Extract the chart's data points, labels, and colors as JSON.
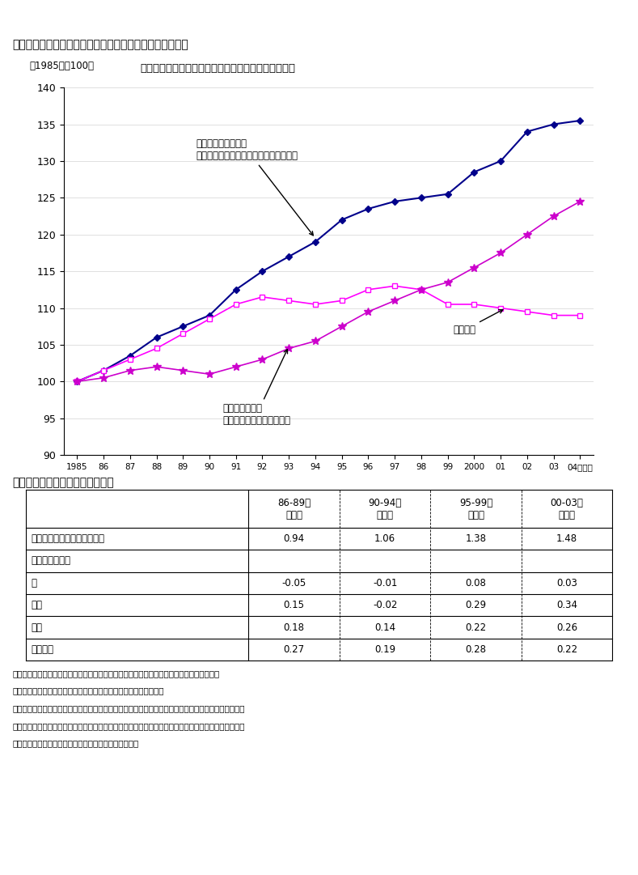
{
  "title": "第３－１－１０図　ディビジア労働指数と就業者数の推移",
  "subtitle": "就業者数は停滞しているが、労働の質は向上している",
  "ylabel_note": "（1985年＝100）",
  "years": [
    1985,
    1986,
    1987,
    1988,
    1989,
    1990,
    1991,
    1992,
    1993,
    1994,
    1995,
    1996,
    1997,
    1998,
    1999,
    2000,
    2001,
    2002,
    2003,
    2004
  ],
  "divissia_y": [
    100,
    101.5,
    103.5,
    106.0,
    107.5,
    109.0,
    112.5,
    115.0,
    117.0,
    119.0,
    122.0,
    123.5,
    124.5,
    125.0,
    125.5,
    128.5,
    130.0,
    134.0,
    135.0,
    135.5
  ],
  "employed_y": [
    100,
    101.5,
    103.0,
    104.5,
    106.5,
    108.5,
    110.5,
    111.5,
    111.0,
    110.5,
    111.0,
    112.5,
    113.0,
    112.5,
    110.5,
    110.5,
    110.0,
    109.5,
    109.0,
    109.0
  ],
  "quality_y": [
    100,
    100.5,
    101.5,
    102.0,
    101.5,
    101.0,
    102.0,
    103.0,
    104.5,
    105.5,
    107.5,
    109.5,
    111.0,
    112.5,
    113.5,
    115.5,
    117.5,
    120.0,
    122.5,
    124.5
  ],
  "divissia_color": "#00008B",
  "employed_color": "#FF00FF",
  "quality_color": "#CC00CC",
  "ylim": [
    90,
    140
  ],
  "yticks": [
    90,
    95,
    100,
    105,
    110,
    115,
    120,
    125,
    130,
    135,
    140
  ],
  "table_title": "労働の質向上分　各属性要因分解",
  "col_headers": [
    "86-89年\n年平均",
    "90-94年\n年平均",
    "95-99年\n年平均",
    "00-03年\n年平均"
  ],
  "row_labels": [
    "労働の質向上分（前年比％）",
    "（属性別寄与）",
    "性",
    "年齢",
    "学歴",
    "勤続年数"
  ],
  "table_data": [
    [
      "0.94",
      "1.06",
      "1.38",
      "1.48"
    ],
    [
      "",
      "",
      "",
      ""
    ],
    [
      "-0.05",
      "-0.01",
      "0.08",
      "0.03"
    ],
    [
      "0.15",
      "-0.02",
      "0.29",
      "0.34"
    ],
    [
      "0.18",
      "0.14",
      "0.22",
      "0.26"
    ],
    [
      "0.27",
      "0.19",
      "0.28",
      "0.22"
    ]
  ],
  "footnotes": [
    "（備考）　１．厚生労働省「賃金構造基本統計調査」、総務省「労働力調査」により作成。",
    "　　　　　２．ディビジア労働指数については付注３－２を参照。",
    "　　　　　３．属性別寄与の見方は、例えば勤続年数効果は、就業者の勤続年数別の構成比変化による",
    "　　　　　　　影響度合い（賃金が高い勤続年数の就業者が増えることによる変化分）を示している。",
    "　　　　　　　上記の他に各項目間の交差効果がある。"
  ]
}
